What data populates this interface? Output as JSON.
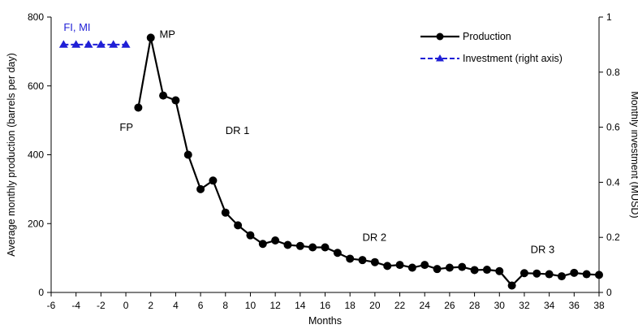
{
  "chart_data": {
    "type": "line",
    "title": "",
    "xlabel": "Months",
    "ylabel": "Average monthly production (barrels per day)",
    "y2label": "Monthly investment (MUSD)",
    "xlim": [
      -6,
      38
    ],
    "ylim": [
      0,
      800
    ],
    "y2lim": [
      0,
      1
    ],
    "xticks": [
      -6,
      -4,
      -2,
      0,
      2,
      4,
      6,
      8,
      10,
      12,
      14,
      16,
      18,
      20,
      22,
      24,
      26,
      28,
      30,
      32,
      34,
      36,
      38
    ],
    "yticks": [
      0,
      200,
      400,
      600,
      800
    ],
    "y2ticks": [
      0,
      0.2,
      0.4,
      0.6,
      0.8,
      1
    ],
    "grid": false,
    "legend_position": "top-right",
    "series": [
      {
        "name": "Production",
        "axis": "left",
        "color": "#000000",
        "marker": "circle",
        "x": [
          1,
          2,
          3,
          4,
          5,
          6,
          7,
          8,
          9,
          10,
          11,
          12,
          13,
          14,
          15,
          16,
          17,
          18,
          19,
          20,
          21,
          22,
          23,
          24,
          25,
          26,
          27,
          28,
          29,
          30,
          31,
          32,
          33,
          34,
          35,
          36,
          37,
          38
        ],
        "values": [
          537,
          740,
          572,
          558,
          400,
          300,
          325,
          232,
          195,
          166,
          141,
          151,
          138,
          135,
          131,
          131,
          115,
          98,
          94,
          88,
          77,
          80,
          72,
          80,
          68,
          72,
          74,
          65,
          66,
          62,
          20,
          56,
          55,
          53,
          47,
          57,
          53,
          51
        ]
      },
      {
        "name": "Investment (right axis)",
        "axis": "right",
        "color": "#1f1fd6",
        "marker": "triangle",
        "x": [
          -5,
          -4,
          -3,
          -2,
          -1,
          0
        ],
        "values": [
          0.9,
          0.9,
          0.9,
          0.9,
          0.9,
          0.9
        ]
      }
    ],
    "annotations": [
      {
        "text": "FI, MI",
        "x": -5,
        "y": 760,
        "color": "blue"
      },
      {
        "text": "MP",
        "x": 2.7,
        "y": 740
      },
      {
        "text": "FP",
        "x": -0.5,
        "y": 470
      },
      {
        "text": "DR 1",
        "x": 8,
        "y": 460
      },
      {
        "text": "DR 2",
        "x": 19,
        "y": 150
      },
      {
        "text": "DR 3",
        "x": 32.5,
        "y": 115
      }
    ]
  }
}
